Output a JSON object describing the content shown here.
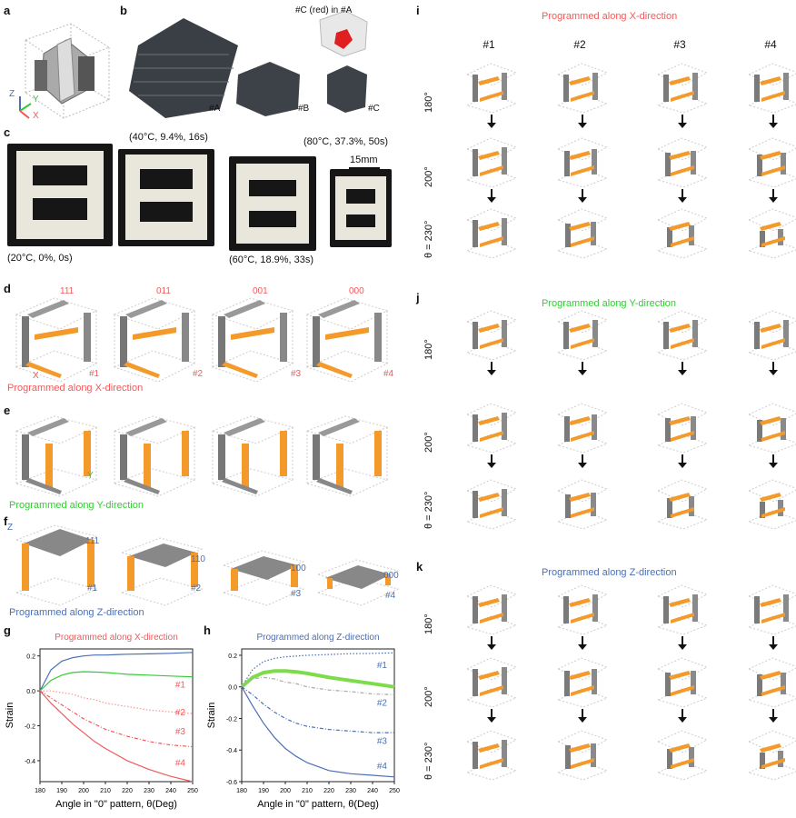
{
  "panels": {
    "a": {
      "label": "a",
      "axes": {
        "z": "Z",
        "y": "Y",
        "x": "X"
      }
    },
    "b": {
      "label": "b",
      "inset_title": "#C (red) in #A",
      "items": [
        "#A",
        "#B",
        "#C"
      ]
    },
    "c": {
      "label": "c",
      "captions": [
        "(20°C, 0%, 0s)",
        "(40°C, 9.4%, 16s)",
        "(60°C, 18.9%, 33s)",
        "(80°C, 37.3%, 50s)"
      ],
      "scale": "15mm"
    },
    "d": {
      "label": "d",
      "codes": [
        "111",
        "011",
        "001",
        "000"
      ],
      "ids": [
        "#1",
        "#2",
        "#3",
        "#4"
      ],
      "axis": "X",
      "title": "Programmed along X-direction"
    },
    "e": {
      "label": "e",
      "axis": "Y",
      "title": "Programmed along Y-direction"
    },
    "f": {
      "label": "f",
      "codes": [
        "111",
        "110",
        "100",
        "000"
      ],
      "ids": [
        "#1",
        "#2",
        "#3",
        "#4"
      ],
      "axis": "Z",
      "title": "Programmed along Z-direction"
    },
    "g": {
      "label": "g"
    },
    "h": {
      "label": "h"
    },
    "i": {
      "label": "i",
      "title": "Programmed along X-direction"
    },
    "j": {
      "label": "j",
      "title": "Programmed along Y-direction"
    },
    "k": {
      "label": "k",
      "title": "Programmed along Z-direction"
    },
    "columns": [
      "#1",
      "#2",
      "#3",
      "#4"
    ],
    "rows": [
      "180°",
      "200°",
      "θ = 230°"
    ]
  },
  "colors": {
    "orange": "#f39a2b",
    "gray": "#8e8e8e",
    "red": "#f05a5a",
    "green": "#33cc33",
    "blue": "#4a6fb5"
  },
  "chart_data": [
    {
      "type": "line",
      "title": "Programmed along X-direction",
      "xlabel": "Angle in \"0\" pattern,  θ(Deg)",
      "ylabel": "Strain",
      "xlim": [
        180,
        250
      ],
      "ylim": [
        -0.52,
        0.24
      ],
      "xticks": [
        180,
        190,
        200,
        210,
        220,
        230,
        240,
        250
      ],
      "yticks": [
        -0.4,
        -0.2,
        0.0,
        0.2
      ],
      "x": [
        180,
        185,
        190,
        195,
        200,
        205,
        210,
        220,
        230,
        240,
        250
      ],
      "series": [
        {
          "values": [
            0,
            0.12,
            0.17,
            0.19,
            0.2,
            0.205,
            0.205,
            0.21,
            0.212,
            0.215,
            0.22
          ],
          "color": "#4a6fb5",
          "style": "solid"
        },
        {
          "name": "#1",
          "values": [
            0,
            0.06,
            0.09,
            0.105,
            0.11,
            0.108,
            0.105,
            0.095,
            0.09,
            0.085,
            0.08
          ],
          "color": "#33cc33",
          "style": "solid"
        },
        {
          "name": "#2",
          "values": [
            0,
            0.0,
            -0.01,
            -0.02,
            -0.04,
            -0.05,
            -0.07,
            -0.09,
            -0.11,
            -0.12,
            -0.13
          ],
          "color": "#f39a9a",
          "style": "dotted"
        },
        {
          "name": "#3",
          "values": [
            0,
            -0.04,
            -0.08,
            -0.12,
            -0.16,
            -0.19,
            -0.22,
            -0.26,
            -0.29,
            -0.31,
            -0.32
          ],
          "color": "#f05a5a",
          "style": "dashed"
        },
        {
          "name": "#4",
          "values": [
            0,
            -0.07,
            -0.13,
            -0.19,
            -0.24,
            -0.29,
            -0.33,
            -0.4,
            -0.45,
            -0.49,
            -0.52
          ],
          "color": "#f05a5a",
          "style": "solid"
        }
      ]
    },
    {
      "type": "line",
      "title": "Programmed along Z-direction",
      "xlabel": "Angle in \"0\" pattern,  θ(Deg)",
      "ylabel": "Strain",
      "xlim": [
        180,
        250
      ],
      "ylim": [
        -0.6,
        0.24
      ],
      "xticks": [
        180,
        190,
        200,
        210,
        220,
        230,
        240,
        250
      ],
      "yticks": [
        -0.6,
        -0.4,
        -0.2,
        0.0,
        0.2
      ],
      "x": [
        180,
        185,
        190,
        195,
        200,
        205,
        210,
        220,
        230,
        240,
        250
      ],
      "series": [
        {
          "name": "#1",
          "values": [
            0,
            0.11,
            0.16,
            0.18,
            0.19,
            0.195,
            0.2,
            0.205,
            0.21,
            0.212,
            0.215
          ],
          "color": "#4a6fb5",
          "style": "dotted"
        },
        {
          "values": [
            0,
            0.06,
            0.09,
            0.1,
            0.1,
            0.095,
            0.085,
            0.06,
            0.04,
            0.02,
            0.0
          ],
          "color": "#7ddc4a",
          "style": "thick"
        },
        {
          "name": "#2",
          "values": [
            0,
            0.05,
            0.06,
            0.05,
            0.03,
            0.02,
            0.0,
            -0.02,
            -0.03,
            -0.045,
            -0.05
          ],
          "color": "#aaaaaa",
          "style": "dashed"
        },
        {
          "name": "#3",
          "values": [
            0,
            -0.05,
            -0.11,
            -0.16,
            -0.2,
            -0.23,
            -0.25,
            -0.27,
            -0.28,
            -0.29,
            -0.29
          ],
          "color": "#4a6fb5",
          "style": "dashed"
        },
        {
          "name": "#4",
          "values": [
            0,
            -0.12,
            -0.23,
            -0.32,
            -0.39,
            -0.44,
            -0.48,
            -0.53,
            -0.55,
            -0.56,
            -0.57
          ],
          "color": "#4a6fb5",
          "style": "solid"
        }
      ]
    }
  ]
}
